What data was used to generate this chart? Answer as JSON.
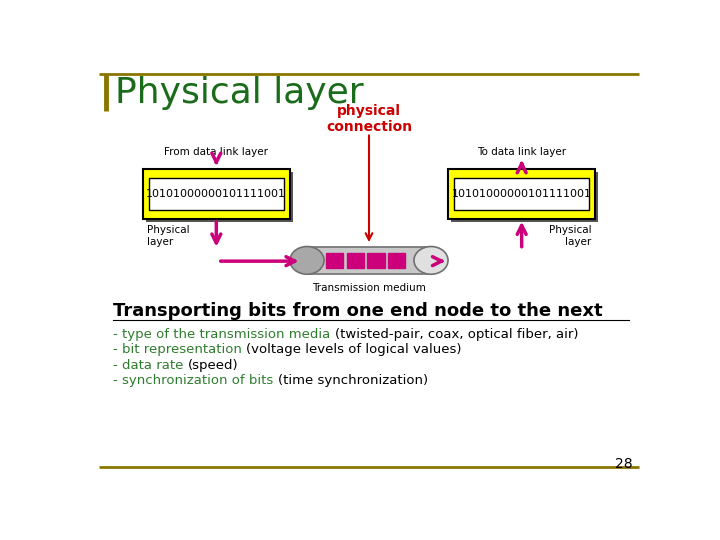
{
  "title": "Physical layer",
  "title_color": "#1a6b1a",
  "bg_color": "#ffffff",
  "border_color": "#8B7500",
  "slide_number": "28",
  "physical_connection_label": "physical\nconnection",
  "physical_connection_color": "#cc0000",
  "from_label": "From data link layer",
  "to_label": "To data link layer",
  "binary_string": "10101000000101111001",
  "yellow_color": "#ffff00",
  "magenta_color": "#cc007a",
  "phys_layer_label_left": "Physical\nlayer",
  "phys_layer_label_right": "Physical\nlayer",
  "trans_medium_label": "Transmission medium",
  "heading": "Transporting bits from one end node to the next",
  "bullet1_green": "- type of the transmission media ",
  "bullet1_black": "(twisted-pair, coax, optical fiber, air)",
  "bullet2_green": "- bit representation ",
  "bullet2_black": "(voltage levels of logical values)",
  "bullet3_green": "- data rate ",
  "bullet3_black": "(speed)",
  "bullet4_green": "- synchronization of bits ",
  "bullet4_black": "(time synchronization)",
  "green_text_color": "#2e7d2e",
  "black_text_color": "#000000",
  "cyl_body_color": "#c8c8c8",
  "cyl_left_color": "#a8a8a8",
  "cyl_right_color": "#e0e0e0"
}
